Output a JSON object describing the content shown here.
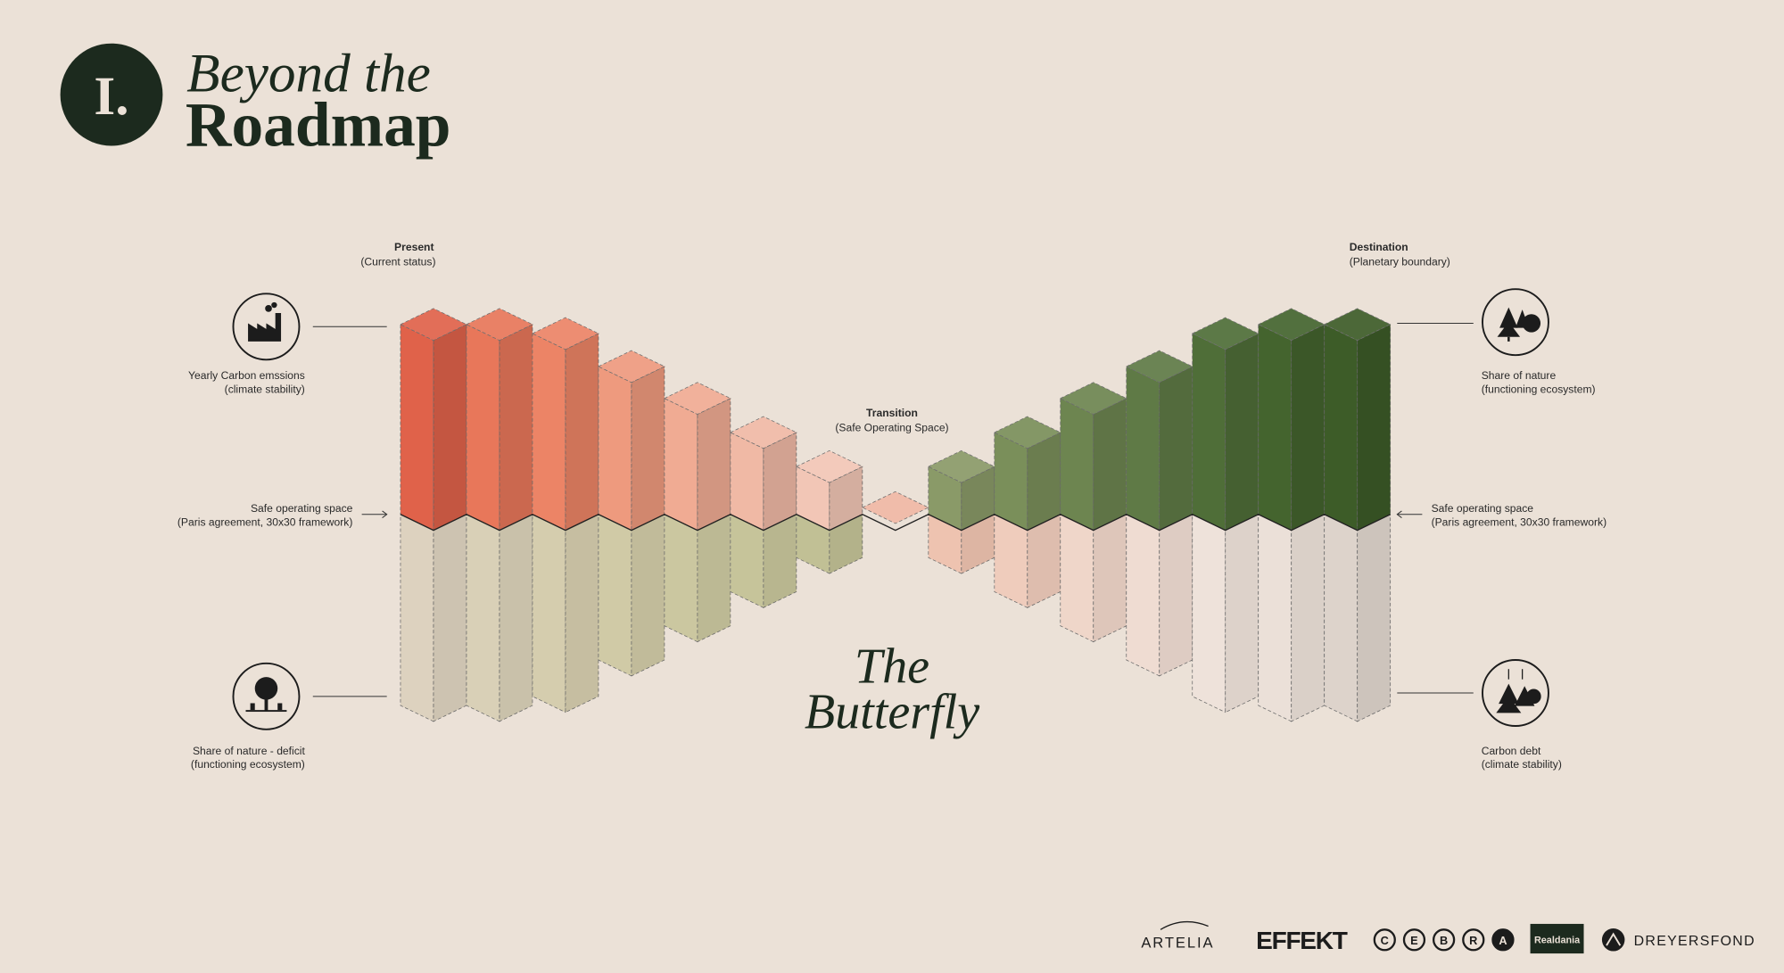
{
  "header": {
    "badge": "I.",
    "title_line1": "Beyond the",
    "title_line2": "Roadmap"
  },
  "present": {
    "title": "Present",
    "subtitle": "(Current status)"
  },
  "transition": {
    "title": "Transition",
    "subtitle": "(Safe Operating Space)"
  },
  "destination": {
    "title": "Destination",
    "subtitle": "(Planetary boundary)"
  },
  "left_labels": [
    {
      "title": "Yearly Carbon emssions",
      "subtitle": "(climate stability)"
    },
    {
      "title": "Safe operating space",
      "subtitle": "(Paris agreement, 30x30 framework)"
    },
    {
      "title": "Share of nature - deficit",
      "subtitle": "(functioning ecosystem)"
    }
  ],
  "right_labels": [
    {
      "title": "Share of nature",
      "subtitle": "(functioning ecosystem)"
    },
    {
      "title": "Safe operating space",
      "subtitle": "(Paris agreement, 30x30 framework)"
    },
    {
      "title": "Carbon debt",
      "subtitle": "(climate stability)"
    }
  ],
  "butterfly": {
    "line1": "The",
    "line2": "Butterfly"
  },
  "logos": {
    "artelia": "ARTELIA",
    "effekt": "EFFEKT",
    "cebra": [
      "C",
      "E",
      "B",
      "R",
      "A"
    ],
    "realdania": "Realdania",
    "dreyersfond": "DREYERSFOND"
  }
}
